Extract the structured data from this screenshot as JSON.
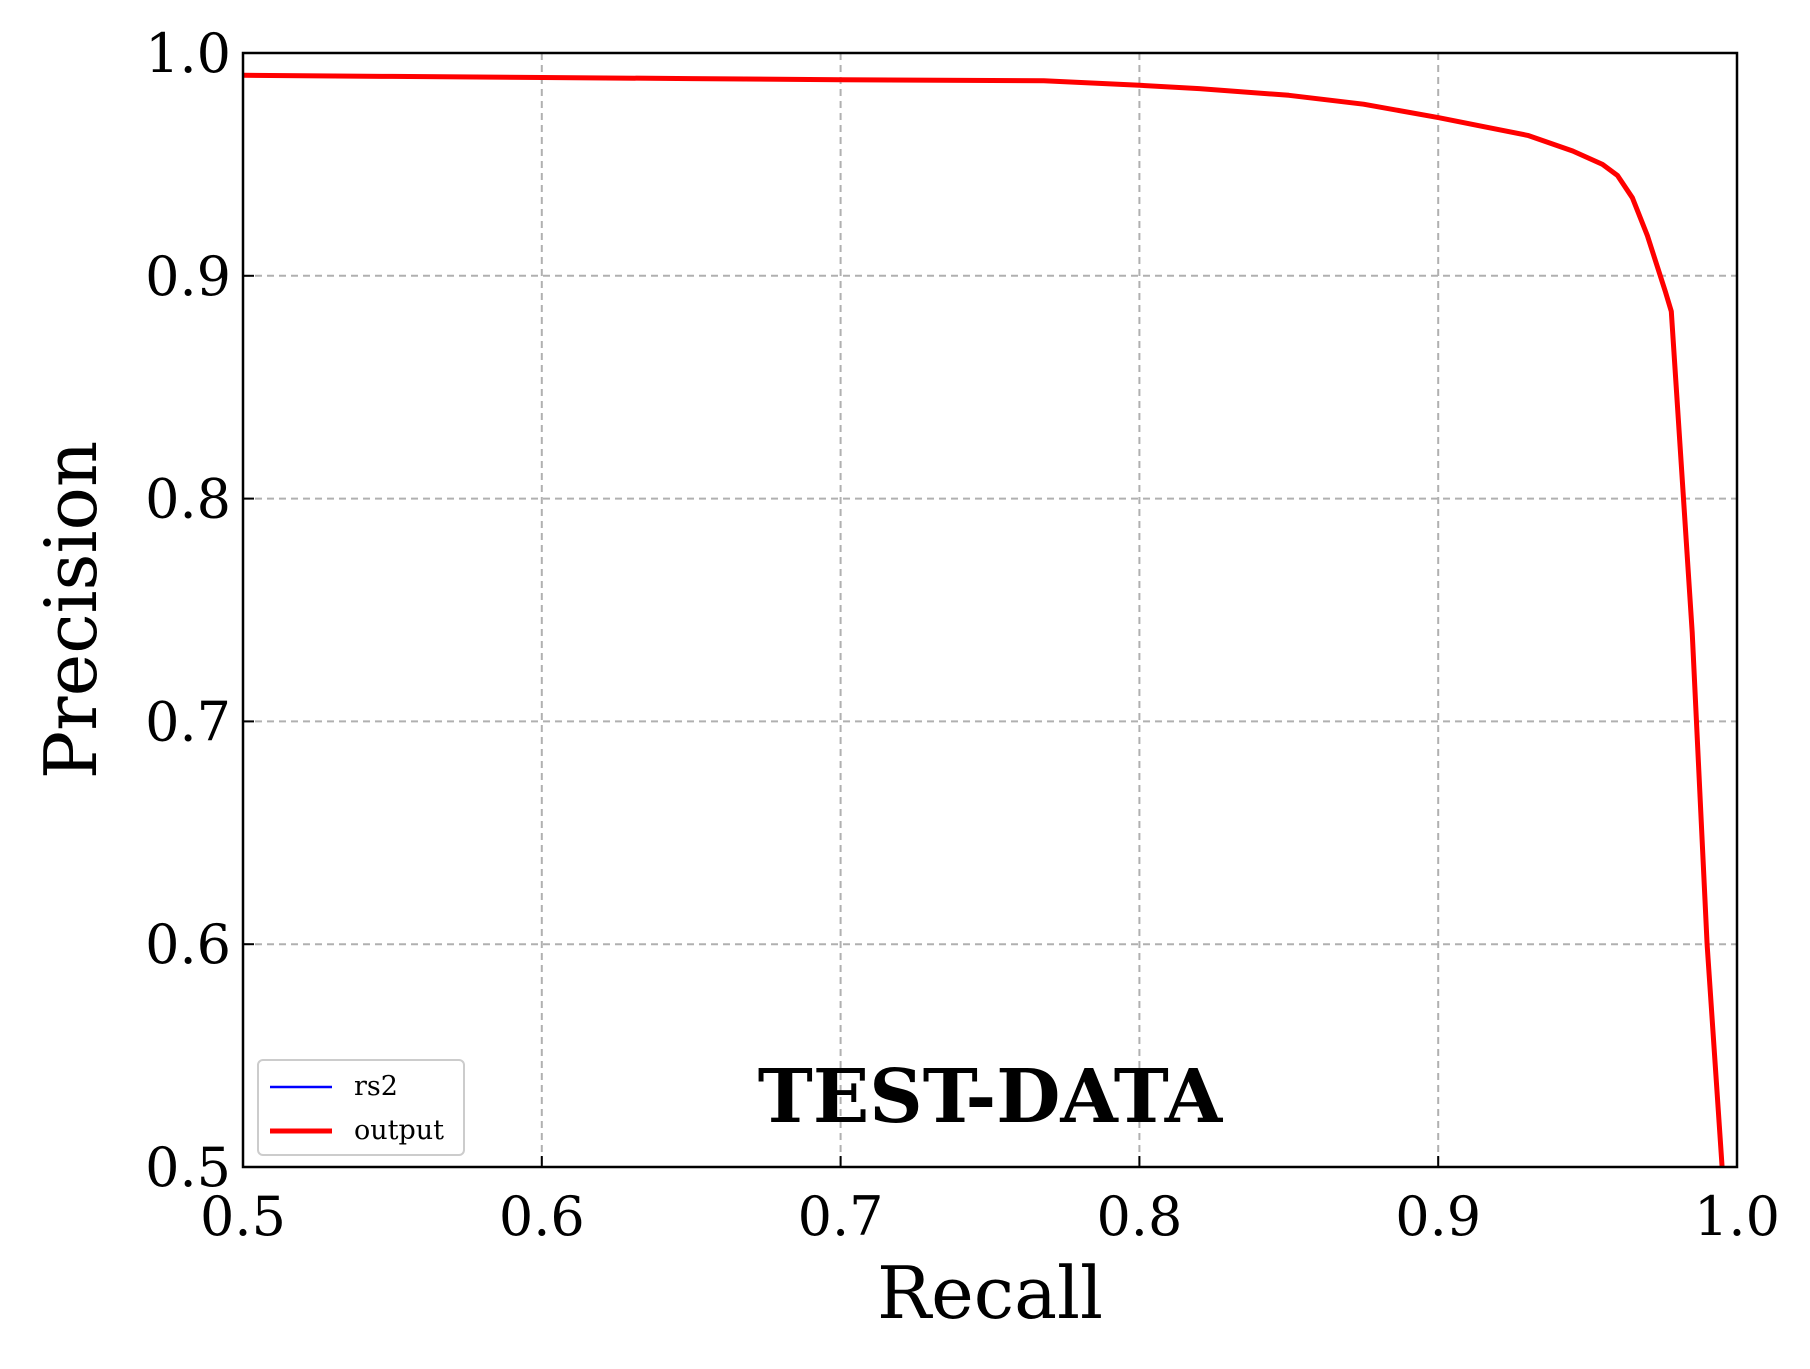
{
  "chart_data": {
    "type": "line",
    "title": "",
    "annotation": "TEST-DATA",
    "xlabel": "Recall",
    "ylabel": "Precision",
    "xlim": [
      0.5,
      1.0
    ],
    "ylim": [
      0.5,
      1.0
    ],
    "x_ticks": [
      "0.5",
      "0.6",
      "0.7",
      "0.8",
      "0.9",
      "1.0"
    ],
    "y_ticks": [
      "0.5",
      "0.6",
      "0.7",
      "0.8",
      "0.9",
      "1.0"
    ],
    "grid": true,
    "legend_position": "lower-left",
    "series": [
      {
        "name": "rs2",
        "color": "#0000ff",
        "x": [],
        "y": []
      },
      {
        "name": "output",
        "color": "#ff0000",
        "x": [
          0.5,
          0.55,
          0.6,
          0.65,
          0.7,
          0.768,
          0.8,
          0.82,
          0.85,
          0.875,
          0.9,
          0.93,
          0.945,
          0.955,
          0.96,
          0.965,
          0.97,
          0.976,
          0.978,
          0.985,
          0.99,
          0.995
        ],
        "y": [
          0.99,
          0.9895,
          0.989,
          0.9885,
          0.988,
          0.9875,
          0.9855,
          0.984,
          0.981,
          0.977,
          0.971,
          0.963,
          0.956,
          0.95,
          0.945,
          0.935,
          0.918,
          0.893,
          0.884,
          0.74,
          0.6,
          0.5
        ]
      }
    ]
  }
}
